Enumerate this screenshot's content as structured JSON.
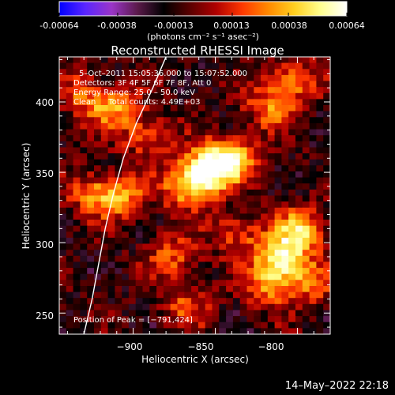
{
  "colorbar": {
    "ticks": [
      "-0.00064",
      "-0.00038",
      "-0.00013",
      "0.00013",
      "0.00038",
      "0.00064"
    ],
    "tick_values": [
      -0.00064,
      -0.00038,
      -0.00013,
      0.00013,
      0.00038,
      0.00064
    ],
    "units": "(photons cm⁻² s⁻¹ asec⁻²)",
    "colors": [
      "#0000ff",
      "#5a26ff",
      "#9a35c8",
      "#5a1a4a",
      "#000000",
      "#5a0000",
      "#b00000",
      "#ff3800",
      "#ff8a00",
      "#ffd020",
      "#ffff90",
      "#ffffff"
    ]
  },
  "annotations": {
    "time": "5–Oct–2011 15:05:36.000 to 15:07:52.000",
    "detectors": "Detectors: 3F 4F 5F 6F 7F 8F, Att 0",
    "energy": "Energy Range: 25.0 – 50.0 keV",
    "clean": "Clean     Total counts: 4.49E+03",
    "peak": "Position of Peak = [−791,424]"
  },
  "footer": {
    "stamp": "14–May–2022 22:18"
  },
  "chart_data": {
    "type": "heatmap",
    "title": "Reconstructed RHESSI Image",
    "xlabel": "Heliocentric X (arcsec)",
    "ylabel": "Heliocentric Y (arcsec)",
    "xlim": [
      -945,
      -780
    ],
    "ylim": [
      235,
      432
    ],
    "x_ticks": [
      -900,
      -850,
      -800
    ],
    "y_ticks": [
      250,
      300,
      350,
      400
    ],
    "x_tick_labels": [
      "−900",
      "−850",
      "−800"
    ],
    "y_tick_labels": [
      "250",
      "300",
      "350",
      "400"
    ],
    "value_range": [
      -0.00064,
      0.00064
    ],
    "peak": [
      -791,
      424
    ],
    "sources": [
      {
        "x": -852,
        "y": 352,
        "level": 1.0
      },
      {
        "x": -866,
        "y": 340,
        "level": 0.75
      },
      {
        "x": -838,
        "y": 360,
        "level": 0.7
      },
      {
        "x": -907,
        "y": 332,
        "level": 0.6
      },
      {
        "x": -925,
        "y": 335,
        "level": 0.45
      },
      {
        "x": -911,
        "y": 395,
        "level": 0.55
      },
      {
        "x": -930,
        "y": 405,
        "level": 0.45
      },
      {
        "x": -890,
        "y": 375,
        "level": 0.45
      },
      {
        "x": -807,
        "y": 290,
        "level": 0.9
      },
      {
        "x": -795,
        "y": 310,
        "level": 0.7
      },
      {
        "x": -815,
        "y": 270,
        "level": 0.6
      },
      {
        "x": -835,
        "y": 305,
        "level": 0.45
      },
      {
        "x": -790,
        "y": 270,
        "level": 0.45
      },
      {
        "x": -815,
        "y": 395,
        "level": 0.5
      },
      {
        "x": -800,
        "y": 415,
        "level": 0.55
      },
      {
        "x": -875,
        "y": 290,
        "level": 0.45
      },
      {
        "x": -866,
        "y": 255,
        "level": 0.4
      }
    ],
    "limb_curve": {
      "x": [
        -880,
        -888,
        -898,
        -906,
        -912,
        -917,
        -921,
        -925,
        -930
      ],
      "y": [
        432,
        410,
        385,
        360,
        335,
        310,
        285,
        260,
        235
      ]
    }
  }
}
